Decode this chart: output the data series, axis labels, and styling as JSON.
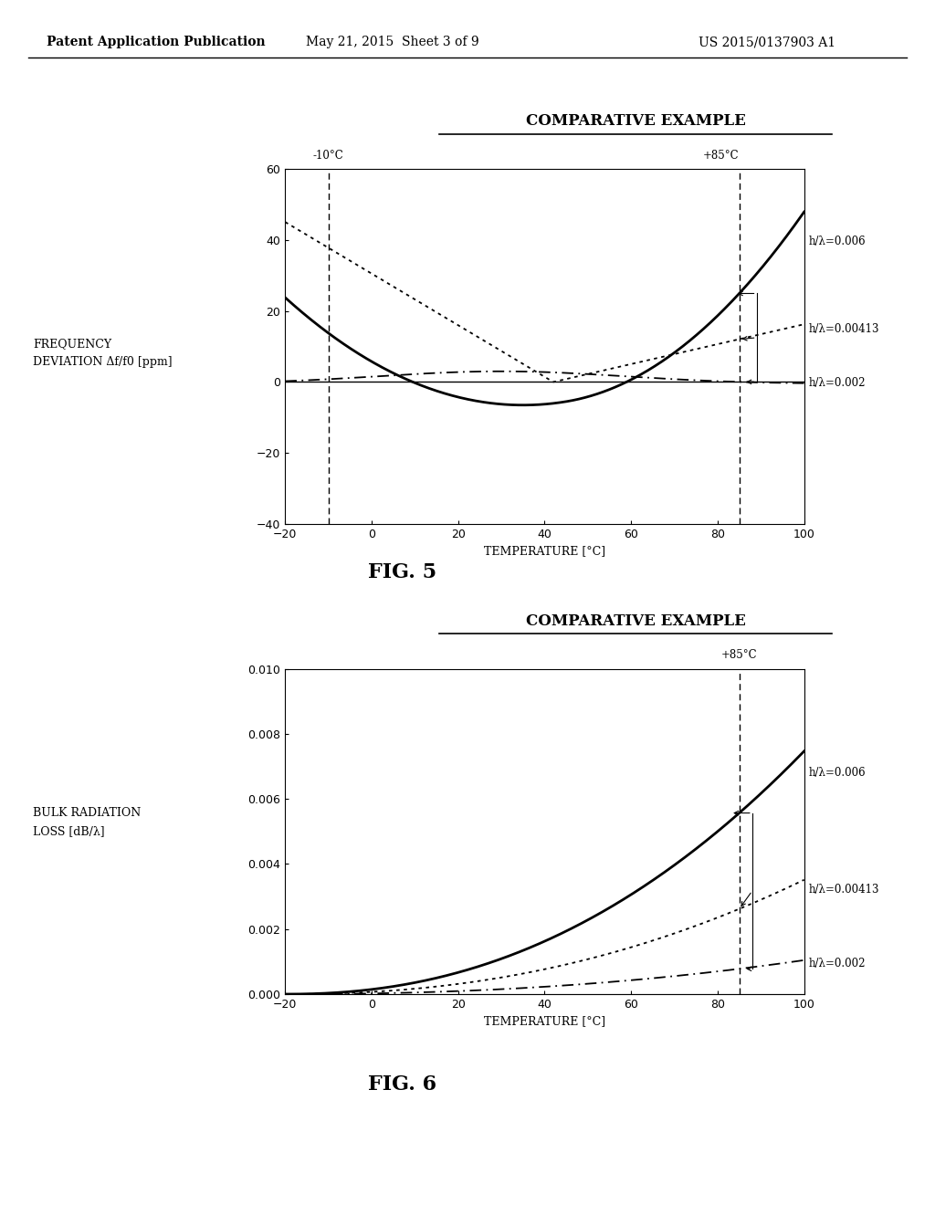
{
  "fig5": {
    "title": "COMPARATIVE EXAMPLE",
    "ylabel_line1": "FREQUENCY",
    "ylabel_line2": "DEVIATION Δf/f0 [ppm]",
    "xlabel": "TEMPERATURE [°C]",
    "xlim": [
      -20,
      100
    ],
    "ylim": [
      -40,
      60
    ],
    "yticks": [
      -40,
      -20,
      0,
      20,
      40,
      60
    ],
    "xticks": [
      -20,
      0,
      20,
      40,
      60,
      80,
      100
    ],
    "vline1": -10,
    "vline2": 85,
    "vline1_label": "-10°C",
    "vline2_label": "+85°C",
    "label_006": "h/λ=0.006",
    "label_00413": "h/λ=0.00413",
    "label_002": "h/λ=0.002",
    "fig_label": "FIG. 5"
  },
  "fig6": {
    "title": "COMPARATIVE EXAMPLE",
    "ylabel_line1": "BULK RADIATION",
    "ylabel_line2": "LOSS [dB/λ]",
    "xlabel": "TEMPERATURE [°C]",
    "xlim": [
      -20,
      100
    ],
    "ylim": [
      0,
      0.01
    ],
    "yticks": [
      0,
      0.002,
      0.004,
      0.006,
      0.008,
      0.01
    ],
    "xticks": [
      -20,
      0,
      20,
      40,
      60,
      80,
      100
    ],
    "vline2": 85,
    "vline2_label": "+85°C",
    "label_006": "h/λ=0.006",
    "label_00413": "h/λ=0.00413",
    "label_002": "h/λ=0.002",
    "fig_label": "FIG. 6"
  },
  "header_left": "Patent Application Publication",
  "header_mid": "May 21, 2015  Sheet 3 of 9",
  "header_right": "US 2015/0137903 A1",
  "bg_color": "#ffffff"
}
